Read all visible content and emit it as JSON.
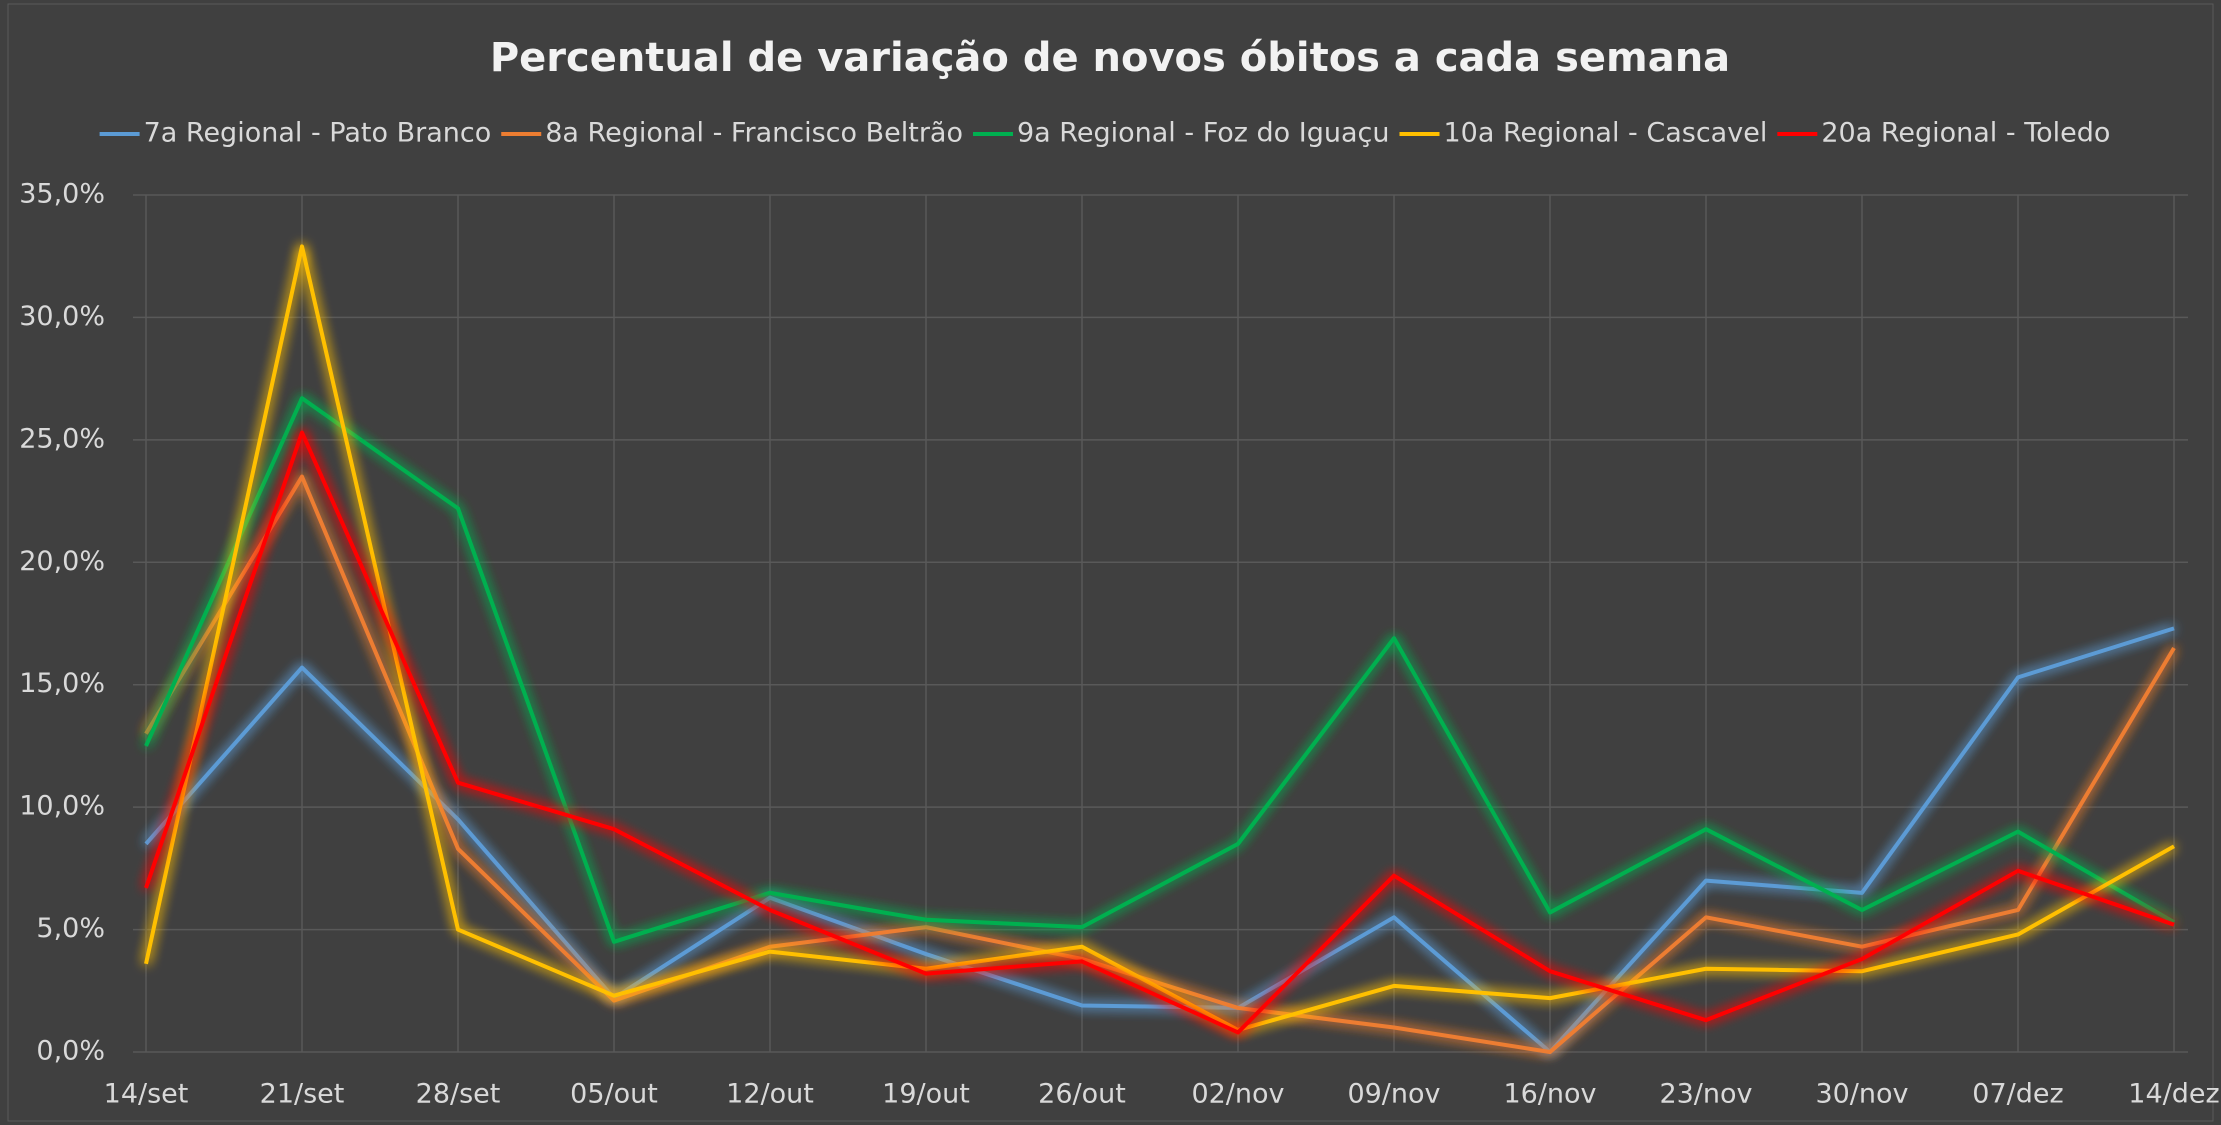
{
  "chart_data": {
    "type": "line",
    "title": "Percentual de variação de novos óbitos a cada semana",
    "categories": [
      "14/set",
      "21/set",
      "28/set",
      "05/out",
      "12/out",
      "19/out",
      "26/out",
      "02/nov",
      "09/nov",
      "16/nov",
      "23/nov",
      "30/nov",
      "07/dez",
      "14/dez"
    ],
    "series": [
      {
        "name": "7a Regional - Pato Branco",
        "color": "#5b9bd5",
        "values": [
          8.5,
          15.7,
          9.5,
          2.2,
          6.3,
          4.0,
          1.9,
          1.8,
          5.5,
          0.0,
          7.0,
          6.5,
          15.3,
          17.3
        ]
      },
      {
        "name": "8a Regional - Francisco Beltrão",
        "color": "#ed7d31",
        "values": [
          13.0,
          23.5,
          8.3,
          2.1,
          4.3,
          5.1,
          3.8,
          1.8,
          1.0,
          0.0,
          5.5,
          4.3,
          5.8,
          16.5
        ]
      },
      {
        "name": "9a Regional - Foz do Iguaçu",
        "color": "#00b050",
        "values": [
          12.5,
          26.7,
          22.2,
          4.5,
          6.5,
          5.4,
          5.1,
          8.5,
          16.9,
          5.7,
          9.1,
          5.8,
          9.0,
          5.3
        ]
      },
      {
        "name": "10a Regional - Cascavel",
        "color": "#ffc000",
        "values": [
          3.6,
          32.9,
          5.0,
          2.3,
          4.1,
          3.4,
          4.3,
          0.9,
          2.7,
          2.2,
          3.4,
          3.3,
          4.8,
          8.4
        ]
      },
      {
        "name": "20a Regional - Toledo",
        "color": "#ff0000",
        "values": [
          6.7,
          25.3,
          11.0,
          9.1,
          5.8,
          3.2,
          3.7,
          0.8,
          7.2,
          3.3,
          1.3,
          3.8,
          7.4,
          5.2
        ]
      }
    ],
    "ylim": [
      0,
      35
    ],
    "yticks": [
      {
        "value": 0,
        "label": "0,0%"
      },
      {
        "value": 5,
        "label": "5,0%"
      },
      {
        "value": 10,
        "label": "10,0%"
      },
      {
        "value": 15,
        "label": "15,0%"
      },
      {
        "value": 20,
        "label": "20,0%"
      },
      {
        "value": 25,
        "label": "25,0%"
      },
      {
        "value": 30,
        "label": "30,0%"
      },
      {
        "value": 35,
        "label": "35,0%"
      }
    ],
    "grid": true,
    "legend": "top"
  }
}
